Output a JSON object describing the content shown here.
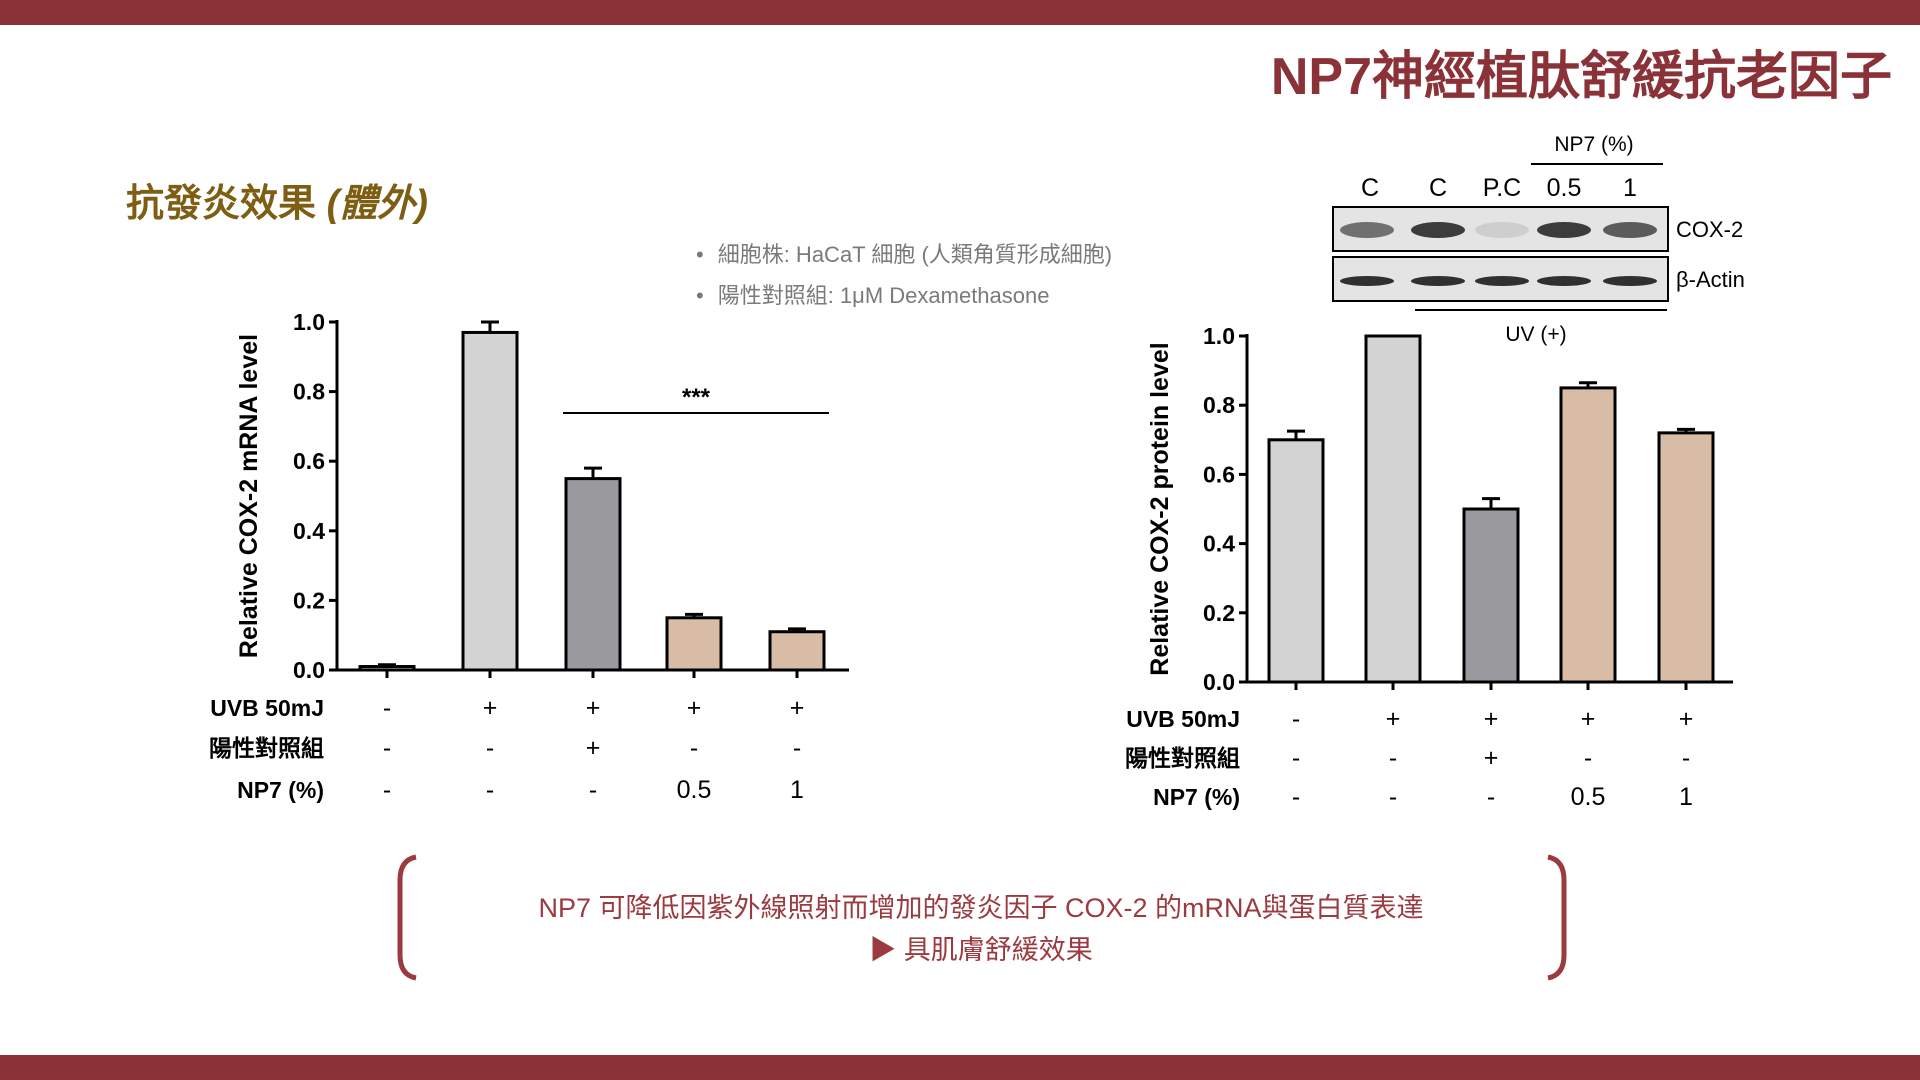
{
  "header": {
    "title": "NP7神經植肽舒緩抗老因子"
  },
  "section": {
    "title": "抗發炎效果",
    "title_paren": "(體外)"
  },
  "bullets": [
    "細胞株: HaCaT 細胞 (人類角質形成細胞)",
    "陽性對照組: 1μM Dexamethasone"
  ],
  "colors": {
    "brand": "#8b3238",
    "light_gray": "#d3d3d3",
    "dark_gray": "#9a9a9e",
    "tan": "#d9bca6"
  },
  "row_labels": [
    "UVB 50mJ",
    "陽性對照組",
    "NP7 (%)"
  ],
  "blot": {
    "group_label": "NP7 (%)",
    "lanes": [
      "C",
      "C",
      "P.C",
      "0.5",
      "1"
    ],
    "bands": [
      "COX-2",
      "β-Actin"
    ],
    "uv_label": "UV (+)"
  },
  "chart_data": [
    {
      "type": "bar",
      "ylabel": "Relative COX-2 mRNA level",
      "ylim": [
        0,
        1.0
      ],
      "yticks": [
        "0.0",
        "0.2",
        "0.4",
        "0.6",
        "0.8",
        "1.0"
      ],
      "values": [
        0.01,
        0.97,
        0.55,
        0.15,
        0.11
      ],
      "errors": [
        0.005,
        0.03,
        0.03,
        0.01,
        0.008
      ],
      "colors": [
        "light_gray",
        "light_gray",
        "dark_gray",
        "tan",
        "tan"
      ],
      "conditions": [
        [
          "-",
          "+",
          "+",
          "+",
          "+"
        ],
        [
          "-",
          "-",
          "+",
          "-",
          "-"
        ],
        [
          "-",
          "-",
          "-",
          "0.5",
          "1"
        ]
      ],
      "annotation": "***"
    },
    {
      "type": "bar",
      "ylabel": "Relative COX-2 protein level",
      "ylim": [
        0,
        1.0
      ],
      "yticks": [
        "0.0",
        "0.2",
        "0.4",
        "0.6",
        "0.8",
        "1.0"
      ],
      "values": [
        0.7,
        1.0,
        0.5,
        0.85,
        0.72
      ],
      "errors": [
        0.025,
        0,
        0.03,
        0.015,
        0.01
      ],
      "colors": [
        "light_gray",
        "light_gray",
        "dark_gray",
        "tan",
        "tan"
      ],
      "conditions": [
        [
          "-",
          "+",
          "+",
          "+",
          "+"
        ],
        [
          "-",
          "-",
          "+",
          "-",
          "-"
        ],
        [
          "-",
          "-",
          "-",
          "0.5",
          "1"
        ]
      ]
    }
  ],
  "conclusion": {
    "line1": "NP7 可降低因紫外線照射而增加的發炎因子 COX-2 的mRNA與蛋白質表達",
    "line2": "▶ 具肌膚舒緩效果"
  }
}
